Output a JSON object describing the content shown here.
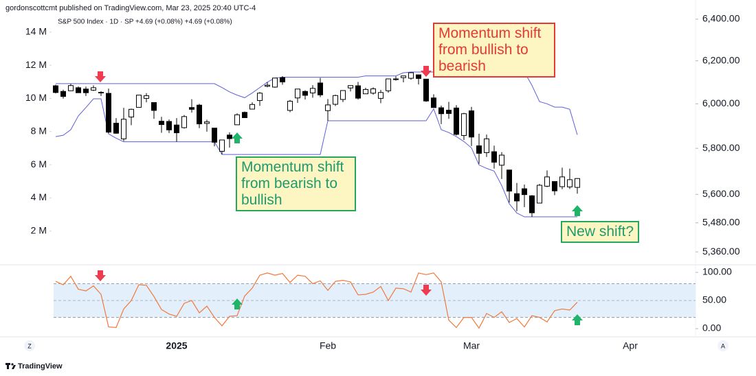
{
  "header": {
    "published": "gordonscottcmt published on TradingView.com, Mar 23, 2025 20:40 UTC-4",
    "legend": "S&P 500 Index · 1D · SP  +4.69 (+0.08%)  +4.69 (+0.08%)",
    "brand": "TradingView",
    "buttons": [
      "Z",
      "A"
    ]
  },
  "annotations": [
    "Momentum shift from bullish to bearish",
    "Momentum shift from bearish to bullish",
    "New shift?"
  ],
  "chart_data": [
    {
      "type": "candlestick",
      "categories": [
        null,
        null,
        null,
        null,
        null,
        null,
        null,
        null,
        null,
        null,
        null,
        null,
        null,
        null,
        null,
        null,
        "2025",
        null,
        null,
        null,
        null,
        null,
        null,
        null,
        null,
        null,
        null,
        null,
        null,
        null,
        null,
        null,
        null,
        null,
        null,
        null,
        "Feb",
        null,
        null,
        null,
        null,
        null,
        null,
        null,
        null,
        null,
        null,
        null,
        null,
        null,
        null,
        null,
        null,
        null,
        null,
        "Mar",
        null,
        null,
        null,
        null,
        null,
        null,
        null,
        null,
        null,
        null,
        null,
        null,
        null,
        null,
        null,
        null,
        null,
        null,
        null,
        null,
        "Apr",
        null,
        null,
        null,
        null,
        null,
        null,
        null,
        null
      ],
      "open": [
        6083,
        6057,
        6060,
        6074,
        6068,
        6063,
        6053,
        6048,
        5912,
        5842,
        5940,
        5984,
        6025,
        6006,
        5921,
        5920,
        5904,
        5892,
        5983,
        5994,
        5911,
        5890,
        5787,
        5859,
        5905,
        5961,
        5976,
        6015,
        6081,
        6077,
        6121,
        5970,
        6027,
        6057,
        6050,
        6096,
        5969,
        5998,
        6020,
        6073,
        6083,
        6046,
        6049,
        6025,
        6060,
        6115,
        6121,
        6118,
        6134,
        6114,
        6027,
        5982,
        5971,
        5981,
        5857,
        5968,
        5811,
        5781,
        5785,
        5726,
        5705,
        5603,
        5624,
        5594,
        5563,
        5635,
        5655,
        5633,
        5632,
        5630,
        null,
        null,
        null,
        null,
        null,
        null,
        null,
        null,
        null,
        null,
        null,
        null,
        null,
        null,
        null
      ],
      "high": [
        6088,
        6065,
        6092,
        6080,
        6079,
        6085,
        6058,
        6070,
        5935,
        5982,
        5978,
        6040,
        6049,
        6006,
        5941,
        5929,
        5935,
        5949,
        6021,
        6000,
        5928,
        5891,
        5837,
        5871,
        5957,
        5965,
        6007,
        6054,
        6100,
        6118,
        6128,
        6018,
        6069,
        6062,
        6086,
        6120,
        6022,
        6042,
        6062,
        6084,
        6101,
        6074,
        6076,
        6064,
        6116,
        6127,
        6129,
        6147,
        6135,
        6114,
        6044,
        5992,
        6009,
        5994,
        5959,
        5986,
        5865,
        5861,
        5812,
        5783,
        5706,
        5649,
        5642,
        5597,
        5645,
        5703,
        5656,
        5715,
        5711,
        5670,
        null,
        null,
        null,
        null,
        null,
        null,
        null,
        null,
        null,
        null,
        null,
        null,
        null,
        null,
        null
      ],
      "low": [
        6048,
        6024,
        6059,
        6050,
        6036,
        6059,
        6036,
        5867,
        5865,
        5832,
        5903,
        5983,
        6007,
        5932,
        5869,
        5868,
        5829,
        5888,
        5960,
        5890,
        5874,
        5809,
        5773,
        5803,
        5905,
        5937,
        5975,
        5991,
        6076,
        6074,
        6088,
        5962,
        6004,
        6020,
        6028,
        6031,
        5923,
        5990,
        6008,
        6057,
        6020,
        6045,
        6042,
        6003,
        6051,
        6107,
        6099,
        6111,
        6089,
        6009,
        5982,
        5908,
        5932,
        5857,
        5837,
        5810,
        5732,
        5762,
        5711,
        5666,
        5565,
        5529,
        5546,
        5505,
        5563,
        5631,
        5597,
        5622,
        5623,
        5603,
        null,
        null,
        null,
        null,
        null,
        null,
        null,
        null,
        null,
        null,
        null,
        null,
        null,
        null,
        null
      ],
      "close": [
        6052,
        6034,
        6084,
        6051,
        6051,
        6074,
        6050,
        5872,
        5867,
        5930,
        5975,
        6040,
        6037,
        5970,
        5906,
        5882,
        5869,
        5942,
        5975,
        5909,
        5918,
        5827,
        5837,
        5843,
        5950,
        5937,
        5997,
        6049,
        6086,
        6119,
        6101,
        6012,
        6068,
        6039,
        6071,
        6041,
        5995,
        6038,
        6061,
        6084,
        6026,
        6066,
        6069,
        6052,
        6115,
        6115,
        6129,
        6144,
        6117,
        6013,
        5983,
        5955,
        5956,
        5862,
        5955,
        5850,
        5778,
        5842,
        5739,
        5770,
        5614,
        5572,
        5599,
        5522,
        5639,
        5675,
        5615,
        5675,
        5663,
        5668,
        null,
        null,
        null,
        null,
        null,
        null,
        null,
        null,
        null,
        null,
        null,
        null,
        null,
        null,
        null
      ],
      "up_color": "#ffffff",
      "down_color": "#000000",
      "channel": {
        "color": "#5c5fd6",
        "upper": [
          6093,
          6093,
          6093,
          6093,
          6093,
          6093,
          6093,
          6093,
          6093,
          6093,
          6093,
          6093,
          6093,
          6093,
          6093,
          6093,
          6093,
          6093,
          6093,
          6093,
          6093,
          6093,
          6075,
          6055,
          6040,
          6028,
          6050,
          6075,
          6100,
          6119,
          6123,
          6123,
          6123,
          6123,
          6123,
          6123,
          6123,
          6123,
          6123,
          6123,
          6123,
          6129,
          6129,
          6129,
          6129,
          6129,
          6144,
          6147,
          6147,
          6147,
          6147,
          6147,
          6147,
          6147,
          6147,
          6147,
          6147,
          6147,
          6147,
          6147,
          6147,
          6147,
          6147,
          6085,
          6010,
          6000,
          5985,
          5985,
          5975,
          5860,
          null,
          null,
          null,
          null,
          null,
          null,
          null,
          null,
          null,
          null,
          null,
          null,
          null,
          null,
          null
        ],
        "lower": [
          5852,
          5858,
          5883,
          5945,
          5983,
          6023,
          6023,
          5864,
          5845,
          5829,
          5829,
          5829,
          5829,
          5829,
          5829,
          5829,
          5829,
          5829,
          5829,
          5829,
          5829,
          5829,
          5773,
          5773,
          5773,
          5773,
          5773,
          5773,
          5773,
          5773,
          5773,
          5773,
          5773,
          5773,
          5773,
          5773,
          5923,
          5923,
          5923,
          5923,
          5923,
          5923,
          5923,
          5923,
          5923,
          5923,
          5923,
          5923,
          5923,
          5923,
          5977,
          5883,
          5870,
          5852,
          5830,
          5802,
          5727,
          5712,
          5700,
          5638,
          5560,
          5521,
          5505,
          5505,
          5505,
          5505,
          5505,
          5505,
          5505,
          5505,
          null,
          null,
          null,
          null,
          null,
          null,
          null,
          null,
          null,
          null,
          null,
          null,
          null,
          null,
          null
        ]
      },
      "log_scale": true,
      "ylim": [
        5310,
        6477
      ],
      "yticks": [
        {
          "value": 6400,
          "label": "6,400.00"
        },
        {
          "value": 6200,
          "label": "6,200.00"
        },
        {
          "value": 6000,
          "label": "6,000.00"
        },
        {
          "value": 5800,
          "label": "5,800.00"
        },
        {
          "value": 5600,
          "label": "5,600.00"
        },
        {
          "value": 5480,
          "label": "5,480.00"
        },
        {
          "value": 5360,
          "label": "5,360.00"
        }
      ],
      "y2lim": [
        0,
        15730000
      ],
      "y2ticks": [
        {
          "value": 14000000,
          "label": "14 M"
        },
        {
          "value": 12000000,
          "label": "12 M"
        },
        {
          "value": 10000000,
          "label": "10 M"
        },
        {
          "value": 8000000,
          "label": "8 M"
        },
        {
          "value": 6000000,
          "label": "6 M"
        },
        {
          "value": 4000000,
          "label": "4 M"
        },
        {
          "value": 2000000,
          "label": "2 M"
        }
      ],
      "grid": false
    },
    {
      "type": "line",
      "color": "#f0793a",
      "values": [
        84,
        78,
        93,
        70,
        67,
        76,
        61,
        3,
        2,
        35,
        50,
        78,
        77,
        57,
        34,
        26,
        22,
        45,
        50,
        28,
        40,
        20,
        5,
        22,
        23,
        58,
        72,
        95,
        99,
        95,
        98,
        82,
        95,
        93,
        80,
        85,
        68,
        84,
        86,
        83,
        60,
        61,
        65,
        75,
        50,
        72,
        71,
        65,
        99,
        96,
        99,
        83,
        15,
        2,
        20,
        20,
        1,
        27,
        20,
        30,
        11,
        18,
        3,
        23,
        20,
        12,
        32,
        35,
        33,
        47,
        null,
        null,
        null,
        null,
        null,
        null,
        null,
        null,
        null,
        null,
        null,
        null,
        null,
        null,
        null
      ],
      "band": [
        20,
        80
      ],
      "band_color": "#e3effb",
      "ylim": [
        -13.4,
        102.4
      ],
      "yticks": [
        {
          "value": 100,
          "label": "100.00"
        },
        {
          "value": 50,
          "label": "50.00"
        },
        {
          "value": 0,
          "label": "0.00"
        }
      ]
    }
  ]
}
